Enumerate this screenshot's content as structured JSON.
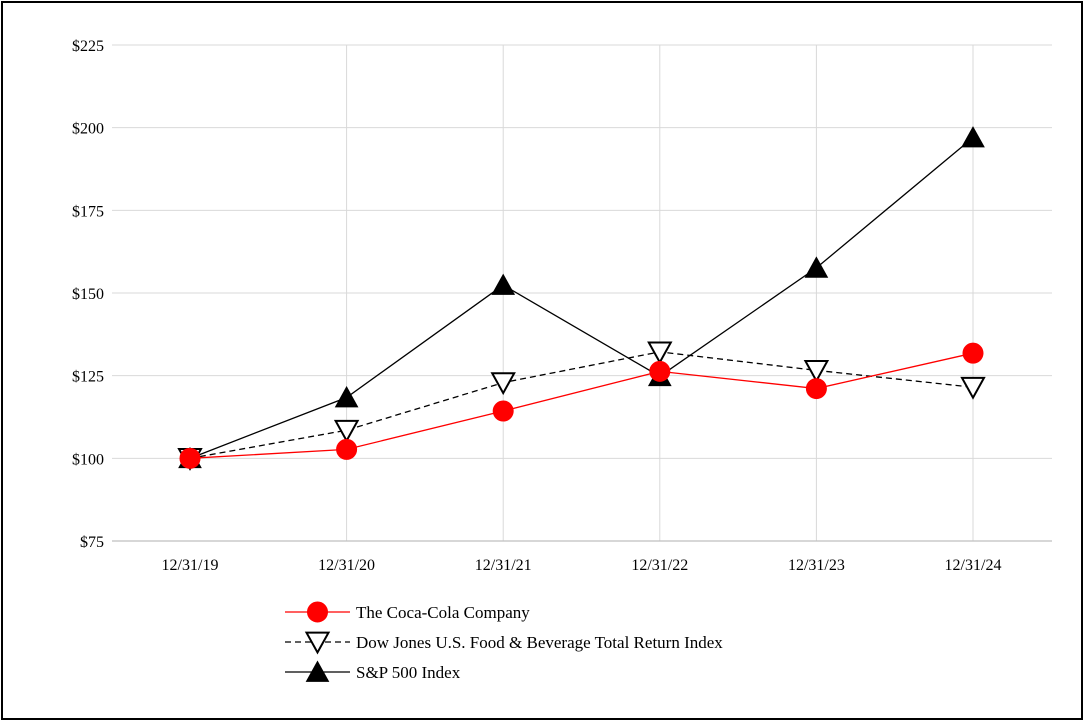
{
  "chart_data": {
    "type": "line",
    "title": "",
    "xlabel": "",
    "ylabel": "",
    "categories": [
      "12/31/19",
      "12/31/20",
      "12/31/21",
      "12/31/22",
      "12/31/23",
      "12/31/24"
    ],
    "ylim": [
      75,
      225
    ],
    "yticks": [
      75,
      100,
      125,
      150,
      175,
      200,
      225
    ],
    "ytick_labels": [
      "$75",
      "$100",
      "$125",
      "$150",
      "$175",
      "$200",
      "$225"
    ],
    "grid": true,
    "legend_position": "bottom",
    "series": [
      {
        "name": "The Coca-Cola Company",
        "values": [
          100,
          102.7,
          114.3,
          126.3,
          121.1,
          131.8
        ],
        "color": "#ff0000",
        "line_style": "solid",
        "marker": "circle"
      },
      {
        "name": "Dow Jones U.S. Food & Beverage Total Return Index",
        "values": [
          100,
          108.5,
          122.9,
          132.2,
          126.6,
          121.5
        ],
        "color": "#000000",
        "line_style": "dashed",
        "marker": "triangle-down-open"
      },
      {
        "name": "S&P 500 Index",
        "values": [
          100,
          118.4,
          152.4,
          124.8,
          157.6,
          197.0
        ],
        "color": "#000000",
        "line_style": "solid",
        "marker": "triangle-up-filled"
      }
    ]
  }
}
